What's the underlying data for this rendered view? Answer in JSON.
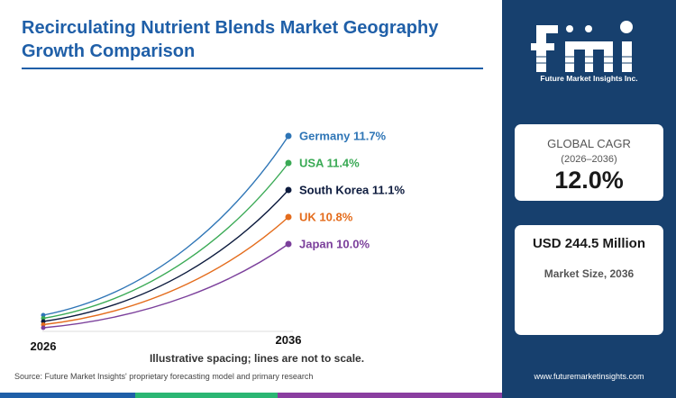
{
  "title": "Recirculating Nutrient Blends Market Geography Growth Comparison",
  "note": "Illustrative spacing; lines are not to scale.",
  "source": "Source: Future Market Insights' proprietary forecasting model and primary research",
  "website": "www.futuremarketinsights.com",
  "logo": {
    "text": "fmi",
    "subtitle": "Future Market Insights Inc."
  },
  "cagr_card": {
    "label": "GLOBAL CAGR",
    "period": "(2026–2036)",
    "value": "12.0%"
  },
  "size_card": {
    "value": "USD 244.5 Million",
    "label": "Market Size, 2036"
  },
  "colors": {
    "title": "#1f5fa8",
    "sidebar": "#17406e",
    "bar": [
      "#1f5fa8",
      "#2bb673",
      "#8a3ea0",
      "#e0e0e0"
    ]
  },
  "chart_data": {
    "type": "line",
    "title": "Recirculating Nutrient Blends Market Geography Growth Comparison",
    "x": [
      "2026",
      "2036"
    ],
    "series": [
      {
        "name": "Germany",
        "cagr": 11.7,
        "label": "Germany 11.7%",
        "color": "#2e75b6"
      },
      {
        "name": "USA",
        "cagr": 11.4,
        "label": "USA 11.4%",
        "color": "#3aaa55"
      },
      {
        "name": "South Korea",
        "cagr": 11.1,
        "label": "South Korea 11.1%",
        "color": "#0d1b3e"
      },
      {
        "name": "UK",
        "cagr": 10.8,
        "label": "UK 10.8%",
        "color": "#e46c1c"
      },
      {
        "name": "Japan",
        "cagr": 10.0,
        "label": "Japan 10.0%",
        "color": "#7b3f9b"
      }
    ],
    "note": "Illustrative spacing; lines are not to scale."
  }
}
